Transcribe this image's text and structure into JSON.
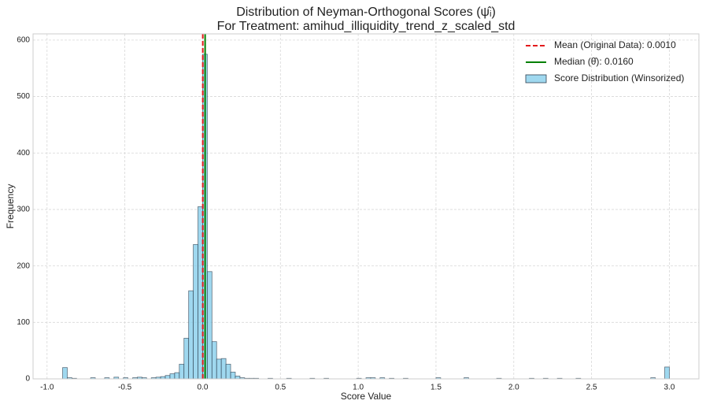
{
  "chart_data": {
    "type": "histogram",
    "title": "Distribution of Neyman-Orthogonal Scores (ψ̂ᵢ)",
    "subtitle": "For Treatment: amihud_illiquidity_trend_z_scaled_std",
    "x_label": "Score Value",
    "y_label": "Frequency",
    "bins": [
      -0.9,
      -0.87,
      -0.84,
      -0.81,
      -0.78,
      -0.75,
      -0.72,
      -0.69,
      -0.66,
      -0.63,
      -0.6,
      -0.57,
      -0.54,
      -0.51,
      -0.48,
      -0.45,
      -0.42,
      -0.39,
      -0.36,
      -0.33,
      -0.3,
      -0.27,
      -0.24,
      -0.21,
      -0.18,
      -0.15,
      -0.12,
      -0.09,
      -0.06,
      -0.03,
      0,
      0.03,
      0.06,
      0.09,
      0.12,
      0.15,
      0.18,
      0.21,
      0.24,
      0.27,
      0.3,
      0.33,
      0.36,
      0.39,
      0.42,
      0.45,
      0.48,
      0.51,
      0.54,
      0.57,
      0.6,
      0.63,
      0.66,
      0.69,
      0.72,
      0.75,
      0.78,
      0.81,
      0.84,
      0.87,
      0.9,
      0.93,
      0.96,
      0.99,
      1.02,
      1.05,
      1.08,
      1.11,
      1.14,
      1.17,
      1.2,
      1.23,
      1.26,
      1.29,
      1.32,
      1.35,
      1.38,
      1.41,
      1.44,
      1.47,
      1.5,
      1.53,
      1.56,
      1.59,
      1.62,
      1.65,
      1.68,
      1.71,
      1.74,
      1.77,
      1.8,
      1.83,
      1.86,
      1.89,
      1.92,
      1.95,
      1.98,
      2.01,
      2.04,
      2.07,
      2.1,
      2.13,
      2.16,
      2.19,
      2.22,
      2.25,
      2.28,
      2.31,
      2.34,
      2.37,
      2.4,
      2.43,
      2.46,
      2.49,
      2.52,
      2.55,
      2.58,
      2.61,
      2.64,
      2.67,
      2.7,
      2.73,
      2.76,
      2.79,
      2.82,
      2.85,
      2.88,
      2.91,
      2.94,
      2.97,
      3.0
    ],
    "series": [
      {
        "name": "Score Distribution (Winsorized)",
        "color": "#87ceeb",
        "values": [
          20,
          2,
          1,
          0,
          0,
          0,
          2,
          0,
          0,
          2,
          0,
          3,
          0,
          2,
          0,
          2,
          3,
          2,
          0,
          2,
          3,
          4,
          6,
          9,
          11,
          26,
          72,
          156,
          238,
          305,
          575,
          190,
          66,
          35,
          36,
          26,
          12,
          5,
          2,
          1,
          1,
          1,
          0,
          0,
          1,
          0,
          0,
          0,
          1,
          0,
          0,
          0,
          0,
          1,
          0,
          0,
          1,
          0,
          0,
          0,
          0,
          0,
          0,
          1,
          0,
          2,
          2,
          0,
          2,
          0,
          1,
          0,
          0,
          1,
          0,
          0,
          0,
          0,
          0,
          0,
          2,
          0,
          0,
          0,
          0,
          0,
          2,
          0,
          0,
          0,
          0,
          0,
          0,
          1,
          0,
          0,
          0,
          0,
          0,
          0,
          1,
          0,
          0,
          1,
          0,
          0,
          1,
          0,
          0,
          0,
          1,
          0,
          0,
          0,
          0,
          0,
          0,
          0,
          0,
          0,
          0,
          0,
          0,
          0,
          0,
          0,
          2,
          0,
          0,
          21
        ]
      }
    ],
    "vlines": [
      {
        "name": "Mean (Original Data): 0.0010",
        "value": 0.001,
        "color": "#e31a1c",
        "style": "dashed"
      },
      {
        "name": "Median (θ̂): 0.0160",
        "value": 0.016,
        "color": "#008000",
        "style": "solid"
      }
    ],
    "xlim": [
      -1.09,
      3.19
    ],
    "ylim": [
      0,
      611
    ],
    "xticks": [
      {
        "value": -1.0,
        "label": "-1.0"
      },
      -0.5,
      {
        "value": 0,
        "label": "0.0"
      },
      0.5,
      {
        "value": 1,
        "label": "1.0"
      },
      1.5,
      {
        "value": 2,
        "label": "2.0"
      },
      2.5,
      {
        "value": 3,
        "label": "3.0"
      }
    ],
    "yticks": [
      0,
      100,
      200,
      300,
      400,
      500,
      600
    ],
    "grid": true,
    "legend": "upper right"
  }
}
